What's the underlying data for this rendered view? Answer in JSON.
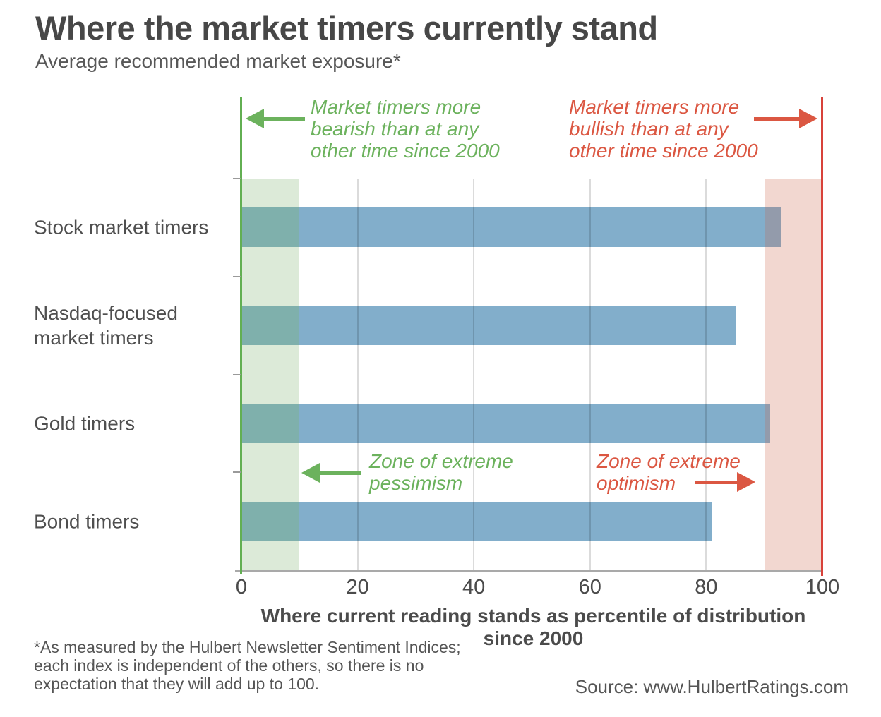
{
  "header": {
    "title": "Where the market timers currently stand",
    "subtitle": "Average recommended market exposure*"
  },
  "annotations": {
    "bearish": "Market timers more\nbearish than at any\nother time since 2000",
    "bullish": "Market timers more\nbullish than at any\nother time since 2000",
    "pessimism": "Zone of extreme\npessimism",
    "optimism": "Zone of extreme\noptimism"
  },
  "chart_data": {
    "type": "bar",
    "orientation": "horizontal",
    "categories": [
      "Stock market timers",
      "Nasdaq-focused market timers",
      "Gold timers",
      "Bond timers"
    ],
    "values": [
      93,
      85,
      91,
      81
    ],
    "xlabel": "Where current reading stands as percentile of distribution since 2000",
    "xticks": [
      0,
      20,
      40,
      60,
      80,
      100
    ],
    "xlim": [
      0,
      100
    ],
    "grid": true,
    "zones": [
      {
        "name": "extreme pessimism",
        "range": [
          0,
          10
        ]
      },
      {
        "name": "extreme optimism",
        "range": [
          90,
          100
        ]
      }
    ],
    "colors": {
      "bar": "#82aecb",
      "band_green": "#dcead8",
      "band_pink": "#f2d7d0",
      "bar_overlap_green": "#7fb0ac",
      "bar_overlap_pink": "#939bab",
      "green_accent": "#6cb25d",
      "green_line": "#62af52",
      "red_accent": "#db5742",
      "red_line": "#d8423a"
    }
  },
  "footer": {
    "footnote": "*As measured by the Hulbert Newsletter Sentiment Indices;\neach index is independent of the others, so there is no\nexpectation that they will add up to 100.",
    "source": "Source: www.HulbertRatings.com"
  }
}
